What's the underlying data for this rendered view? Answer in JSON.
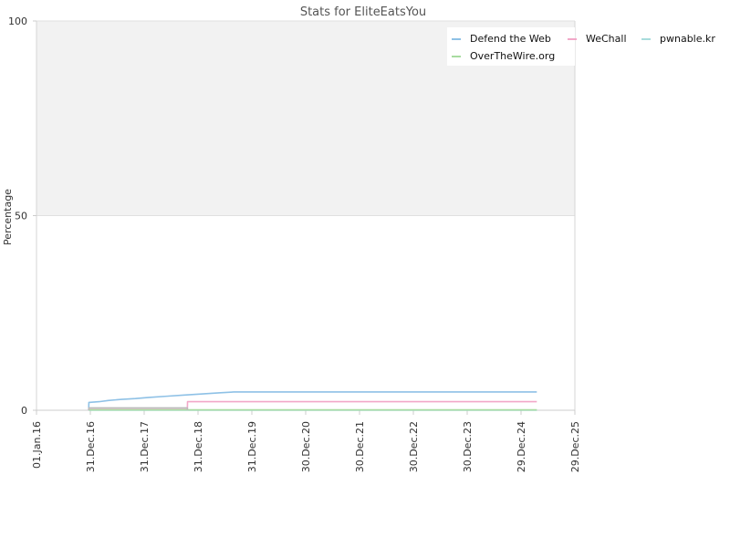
{
  "chart_data": {
    "type": "line",
    "title": "Stats for EliteEatsYou",
    "xlabel": "",
    "ylabel": "Percentage",
    "ylim": [
      0,
      100
    ],
    "y_ticks": [
      "0",
      "50",
      "100"
    ],
    "x_ticks": [
      {
        "date": "2016-01-01",
        "label": "01.Jan.16"
      },
      {
        "date": "2016-12-31",
        "label": "31.Dec.16"
      },
      {
        "date": "2017-12-31",
        "label": "31.Dec.17"
      },
      {
        "date": "2018-12-31",
        "label": "31.Dec.18"
      },
      {
        "date": "2019-12-31",
        "label": "31.Dec.19"
      },
      {
        "date": "2020-12-30",
        "label": "30.Dec.20"
      },
      {
        "date": "2021-12-30",
        "label": "30.Dec.21"
      },
      {
        "date": "2022-12-30",
        "label": "30.Dec.22"
      },
      {
        "date": "2023-12-30",
        "label": "30.Dec.23"
      },
      {
        "date": "2024-12-29",
        "label": "29.Dec.24"
      },
      {
        "date": "2025-12-29",
        "label": "29.Dec.25"
      }
    ],
    "xlim": [
      "2016-01-01",
      "2025-12-29"
    ],
    "shaded_band": [
      50,
      100
    ],
    "grid": true,
    "legend_position": "top-right",
    "series": [
      {
        "name": "Defend the Web",
        "color": "#8ec1e6",
        "points": [
          [
            "2016-12-20",
            0
          ],
          [
            "2016-12-21",
            2.0
          ],
          [
            "2017-03-01",
            2.2
          ],
          [
            "2017-05-01",
            2.5
          ],
          [
            "2017-08-01",
            2.8
          ],
          [
            "2017-11-01",
            3.0
          ],
          [
            "2018-02-01",
            3.3
          ],
          [
            "2018-06-01",
            3.6
          ],
          [
            "2018-10-01",
            3.9
          ],
          [
            "2019-02-01",
            4.2
          ],
          [
            "2019-06-01",
            4.5
          ],
          [
            "2019-09-01",
            4.7
          ],
          [
            "2020-06-01",
            4.7
          ],
          [
            "2022-06-01",
            4.7
          ],
          [
            "2025-04-15",
            4.7
          ]
        ]
      },
      {
        "name": "WeChall",
        "color": "#f2a8c8",
        "points": [
          [
            "2016-12-20",
            0
          ],
          [
            "2016-12-21",
            0.5
          ],
          [
            "2018-10-20",
            0.5
          ],
          [
            "2018-10-21",
            2.2
          ],
          [
            "2020-06-01",
            2.2
          ],
          [
            "2025-04-15",
            2.2
          ]
        ]
      },
      {
        "name": "pwnable.kr",
        "color": "#a8dcdc",
        "points": [
          [
            "2016-12-20",
            0
          ],
          [
            "2025-04-15",
            0
          ]
        ]
      },
      {
        "name": "OverTheWire.org",
        "color": "#a8dca0",
        "points": [
          [
            "2016-12-20",
            0.1
          ],
          [
            "2025-04-15",
            0.1
          ]
        ]
      },
      {
        "name": "",
        "color": "#bbbbbb",
        "points": [
          [
            "2016-12-20",
            0
          ],
          [
            "2016-12-21",
            0.6
          ],
          [
            "2018-10-20",
            0.6
          ],
          [
            "2018-10-21",
            0
          ]
        ]
      }
    ],
    "legend": [
      {
        "name": "Defend the Web",
        "color": "#8ec1e6"
      },
      {
        "name": "WeChall",
        "color": "#f2a8c8"
      },
      {
        "name": "pwnable.kr",
        "color": "#a8dcdc"
      },
      {
        "name": "OverTheWire.org",
        "color": "#a8dca0"
      }
    ]
  }
}
